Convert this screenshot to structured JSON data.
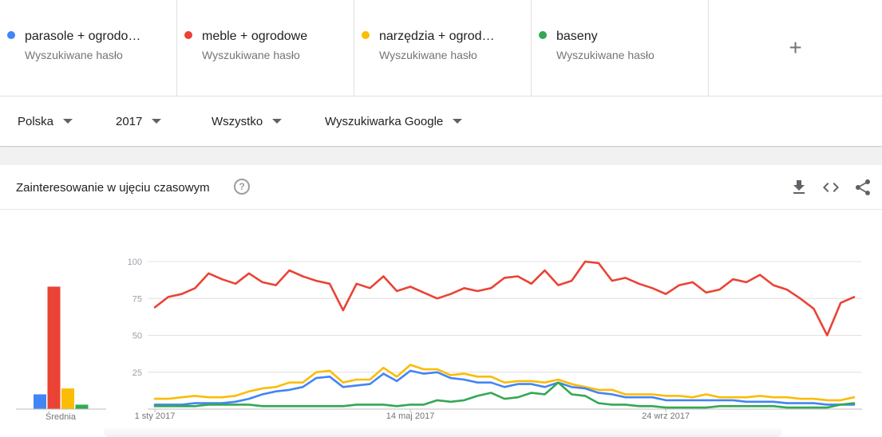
{
  "terms": [
    {
      "label": "parasole + ogrodo…",
      "sub": "Wyszukiwane hasło",
      "color": "#4285f4"
    },
    {
      "label": "meble + ogrodowe",
      "sub": "Wyszukiwane hasło",
      "color": "#ea4335"
    },
    {
      "label": "narzędzia + ogrod…",
      "sub": "Wyszukiwane hasło",
      "color": "#fbbc04"
    },
    {
      "label": "baseny",
      "sub": "Wyszukiwane hasło",
      "color": "#34a853"
    }
  ],
  "add_term": {
    "label": "+",
    "icon": "plus-icon"
  },
  "filters": {
    "region": "Polska",
    "period": "2017",
    "category": "Wszystko",
    "source": "Wyszukiwarka Google"
  },
  "card": {
    "title": "Zainteresowanie w ujęciu czasowym",
    "help": "?",
    "icons": [
      "download-icon",
      "embed-icon",
      "share-icon"
    ]
  },
  "chart_data": {
    "type": "line",
    "y_ticks": [
      "100",
      "75",
      "50",
      "25"
    ],
    "ylim": [
      0,
      100
    ],
    "x_tick_labels": [
      "1 sty 2017",
      "14 maj 2017",
      "24 wrz 2017"
    ],
    "x_tick_indices": [
      0,
      19,
      38
    ],
    "grid": true,
    "averages_label": "Średnia",
    "averages": [
      {
        "name": "parasole + ogrodo…",
        "value": 10,
        "color": "#4285f4"
      },
      {
        "name": "meble + ogrodowe",
        "value": 83,
        "color": "#ea4335"
      },
      {
        "name": "narzędzia + ogrod…",
        "value": 14,
        "color": "#fbbc04"
      },
      {
        "name": "baseny",
        "value": 3,
        "color": "#34a853"
      }
    ],
    "series": [
      {
        "name": "meble + ogrodowe",
        "color": "#ea4335",
        "values": [
          69,
          76,
          78,
          82,
          92,
          88,
          85,
          92,
          86,
          84,
          94,
          90,
          87,
          85,
          67,
          85,
          82,
          90,
          80,
          83,
          79,
          75,
          78,
          82,
          80,
          82,
          89,
          90,
          85,
          94,
          84,
          87,
          100,
          99,
          87,
          89,
          85,
          82,
          78,
          84,
          86,
          79,
          81,
          88,
          86,
          91,
          84,
          81,
          75,
          68,
          50,
          72,
          76
        ]
      },
      {
        "name": "narzędzia + ogrod…",
        "color": "#fbbc04",
        "values": [
          7,
          7,
          8,
          9,
          8,
          8,
          9,
          12,
          14,
          15,
          18,
          18,
          25,
          26,
          18,
          20,
          20,
          28,
          22,
          30,
          27,
          27,
          23,
          24,
          22,
          22,
          18,
          19,
          19,
          18,
          20,
          17,
          15,
          13,
          13,
          10,
          10,
          10,
          9,
          9,
          8,
          10,
          8,
          8,
          8,
          9,
          8,
          8,
          7,
          7,
          6,
          6,
          8
        ]
      },
      {
        "name": "parasole + ogrodo…",
        "color": "#4285f4",
        "values": [
          3,
          3,
          3,
          4,
          4,
          4,
          5,
          7,
          10,
          12,
          13,
          15,
          21,
          22,
          15,
          16,
          17,
          24,
          19,
          26,
          24,
          25,
          21,
          20,
          18,
          18,
          15,
          17,
          17,
          15,
          18,
          15,
          14,
          11,
          10,
          8,
          8,
          8,
          6,
          6,
          6,
          6,
          6,
          6,
          5,
          5,
          5,
          4,
          4,
          4,
          3,
          3,
          3
        ]
      },
      {
        "name": "baseny",
        "color": "#34a853",
        "values": [
          2,
          2,
          2,
          2,
          3,
          3,
          3,
          3,
          2,
          2,
          2,
          2,
          2,
          2,
          2,
          3,
          3,
          3,
          2,
          3,
          3,
          6,
          5,
          6,
          9,
          11,
          7,
          8,
          11,
          10,
          18,
          10,
          9,
          4,
          3,
          3,
          2,
          2,
          1,
          1,
          1,
          1,
          2,
          2,
          2,
          2,
          2,
          1,
          1,
          1,
          1,
          3,
          4
        ]
      }
    ]
  }
}
